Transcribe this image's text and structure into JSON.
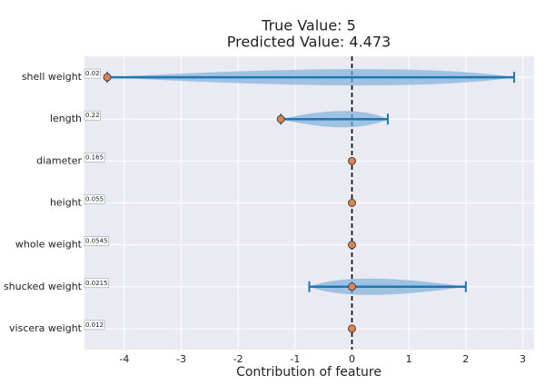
{
  "chart_data": {
    "type": "contribution",
    "title": "True Value: 5",
    "subtitle": "Predicted Value: 4.473",
    "x_label": "Contribution of feature",
    "categories": [
      "shell weight",
      "length",
      "diameter",
      "height",
      "whole weight",
      "shucked weight",
      "viscera weight"
    ],
    "feature_values": [
      "0.02",
      "0.22",
      "0.165",
      "0.055",
      "0.0545",
      "0.0215",
      "0.012"
    ],
    "points": [
      -4.3,
      -1.25,
      0,
      0,
      0,
      0,
      0
    ],
    "lower": [
      -4.3,
      -1.25,
      null,
      null,
      null,
      -0.75,
      null
    ],
    "upper": [
      2.85,
      0.63,
      null,
      null,
      null,
      2.0,
      null
    ],
    "violin_peak": [
      1.0,
      0,
      null,
      null,
      null,
      0,
      null
    ],
    "xlim": [
      -4.7,
      3.2
    ],
    "xticks": [
      -4,
      -3,
      -2,
      -1,
      0,
      1,
      2,
      3
    ],
    "reference_line": 0,
    "grid": true,
    "point_color": "#dd8452",
    "bar_color": "#1f77b4",
    "violin_color": "#7fb0dc"
  }
}
